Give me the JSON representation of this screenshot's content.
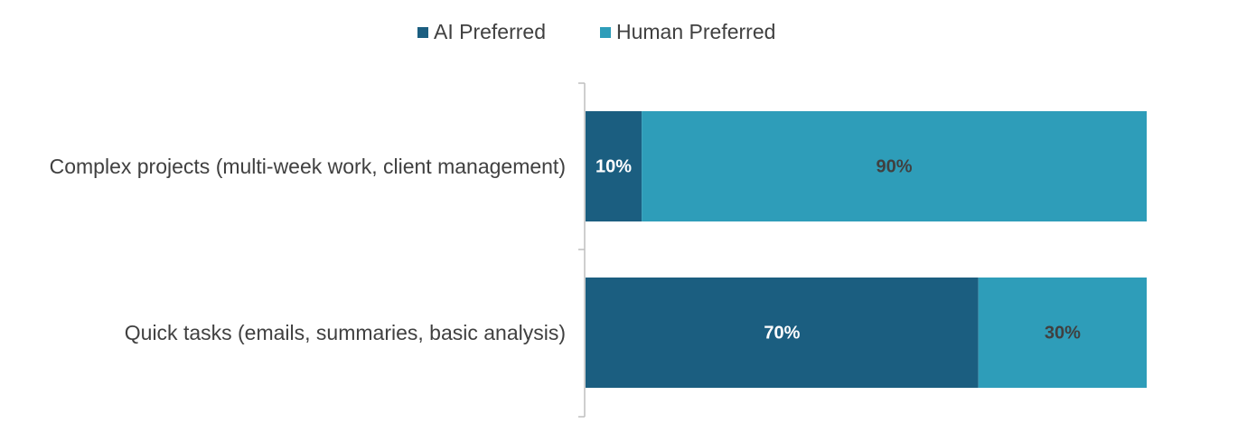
{
  "chart_data": {
    "type": "bar",
    "orientation": "horizontal",
    "stacked": true,
    "legend": "top",
    "categories": [
      "Complex projects (multi-week work, client management)",
      "Quick tasks (emails, summaries, basic analysis)"
    ],
    "series": [
      {
        "name": "AI Preferred",
        "color": "#1b5e80",
        "values": [
          10,
          70
        ],
        "value_labels": [
          "10%",
          "70%"
        ]
      },
      {
        "name": "Human Preferred",
        "color": "#2e9db9",
        "values": [
          90,
          30
        ],
        "value_labels": [
          "90%",
          "30%"
        ]
      }
    ]
  }
}
